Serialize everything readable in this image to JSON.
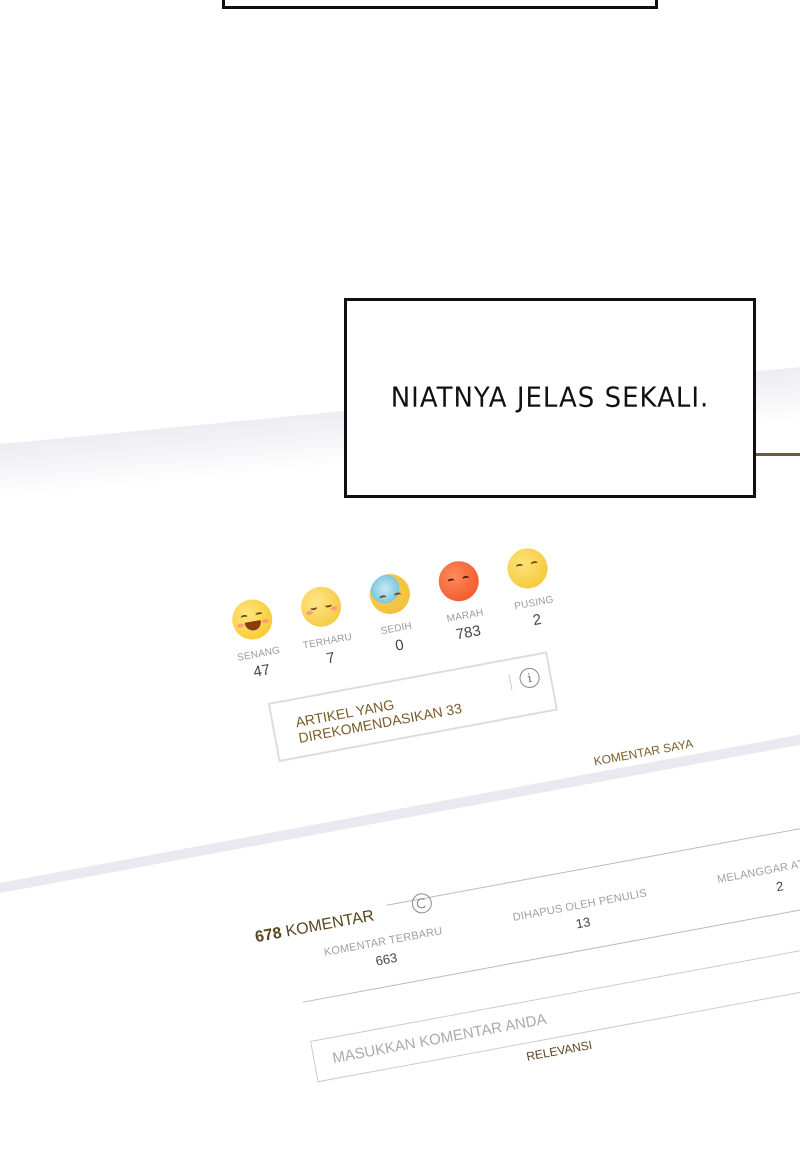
{
  "caption": {
    "text": "NIATNYA JELAS SEKALI."
  },
  "reactions": [
    {
      "icon": "happy-emoji-icon",
      "label": "SENANG",
      "count": "47"
    },
    {
      "icon": "touched-emoji-icon",
      "label": "TERHARU",
      "count": "7"
    },
    {
      "icon": "sad-emoji-icon",
      "label": "SEDIH",
      "count": "0"
    },
    {
      "icon": "angry-emoji-icon",
      "label": "MARAH",
      "count": "783"
    },
    {
      "icon": "dizzy-emoji-icon",
      "label": "PUSING",
      "count": "2"
    }
  ],
  "recommend": {
    "label": "ARTIKEL YANG DIREKOMENDASIKAN 33",
    "info_icon": "i"
  },
  "comments": {
    "my_comments_label": "KOMENTAR SAYA",
    "count": "678",
    "count_label": "KOMENTAR",
    "stats": [
      {
        "label": "KOMENTAR TERBARU",
        "value": "663"
      },
      {
        "label": "DIHAPUS OLEH PENULIS",
        "value": "13"
      },
      {
        "label": "MELANGGAR ATURAN",
        "value": "2"
      }
    ],
    "input_placeholder": "MASUKKAN KOMENTAR ANDA",
    "sort_label": "RELEVANSI"
  },
  "colors": {
    "accent": "#7a5b2a",
    "frame_line": "#6b5a3e"
  }
}
